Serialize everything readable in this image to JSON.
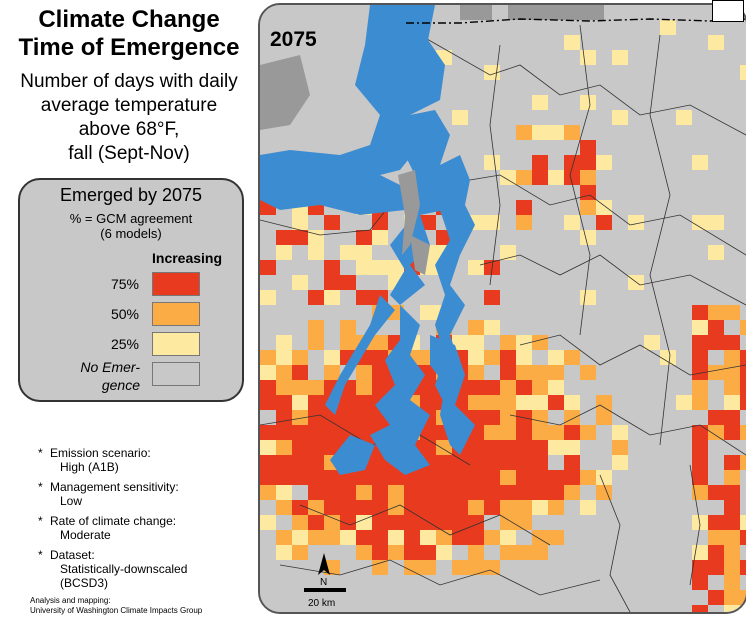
{
  "title_lines": [
    "Climate Change",
    "Time of Emergence"
  ],
  "subtitle_lines": [
    "Number of days with daily",
    "average temperature",
    "above 68°F,",
    "fall (Sept-Nov)"
  ],
  "year_label": "2075",
  "legend": {
    "title": "Emerged by 2075",
    "subtitle_lines": [
      "% = GCM agreement",
      "(6 models)"
    ],
    "column_header": "Increasing",
    "rows": [
      {
        "label": "75%",
        "color": "#e83a1f"
      },
      {
        "label": "50%",
        "color": "#fbac45"
      },
      {
        "label": "25%",
        "color": "#fde9a0"
      }
    ],
    "no_emergence_lines": [
      "No Emer-",
      "gence"
    ],
    "no_emergence_color": "#c8c8c8"
  },
  "notes": [
    {
      "label": "Emission scenario:",
      "value": "High (A1B)"
    },
    {
      "label": "Management sensitivity:",
      "value": "Low"
    },
    {
      "label": "Rate of climate change:",
      "value": "Moderate"
    },
    {
      "label": "Dataset:",
      "value_lines": [
        "Statistically-downscaled",
        "(BCSD3)"
      ]
    }
  ],
  "credit_lines": [
    "Analysis and mapping:",
    "University of Washington Climate Impacts Group"
  ],
  "scale_bar_label": "20 km",
  "north_label": "N",
  "map_colors": {
    "water": "#3c8cd2",
    "land_gray": "#c8c8c8",
    "dark_gray": "#999999",
    "high": "#e83a1f",
    "mid": "#fbac45",
    "low": "#fde9a0"
  }
}
